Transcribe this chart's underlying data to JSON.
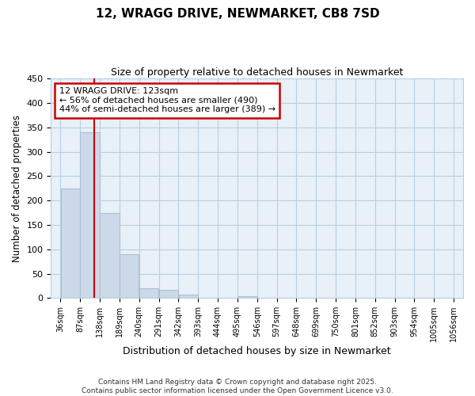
{
  "title": "12, WRAGG DRIVE, NEWMARKET, CB8 7SD",
  "subtitle": "Size of property relative to detached houses in Newmarket",
  "xlabel": "Distribution of detached houses by size in Newmarket",
  "ylabel": "Number of detached properties",
  "bins": [
    36,
    87,
    138,
    189,
    240,
    291,
    342,
    393,
    444,
    495,
    546,
    597,
    648,
    699,
    750,
    801,
    852,
    903,
    954,
    1005,
    1056
  ],
  "values": [
    225,
    340,
    175,
    90,
    20,
    17,
    7,
    1,
    0,
    4,
    0,
    0,
    0,
    0,
    0,
    0,
    0,
    0,
    0,
    1
  ],
  "bar_color": "#ccd9e8",
  "bar_edgecolor": "#aabfd6",
  "property_size": 123,
  "property_line_color": "#cc0000",
  "annotation_line1": "12 WRAGG DRIVE: 123sqm",
  "annotation_line2": "← 56% of detached houses are smaller (490)",
  "annotation_line3": "44% of semi-detached houses are larger (389) →",
  "annotation_box_color": "#cc0000",
  "ylim": [
    0,
    450
  ],
  "yticks": [
    0,
    50,
    100,
    150,
    200,
    250,
    300,
    350,
    400,
    450
  ],
  "background_color": "#ffffff",
  "plot_bg_color": "#e8f0f8",
  "grid_color": "#b8cfe0",
  "footnote1": "Contains HM Land Registry data © Crown copyright and database right 2025.",
  "footnote2": "Contains public sector information licensed under the Open Government Licence v3.0."
}
